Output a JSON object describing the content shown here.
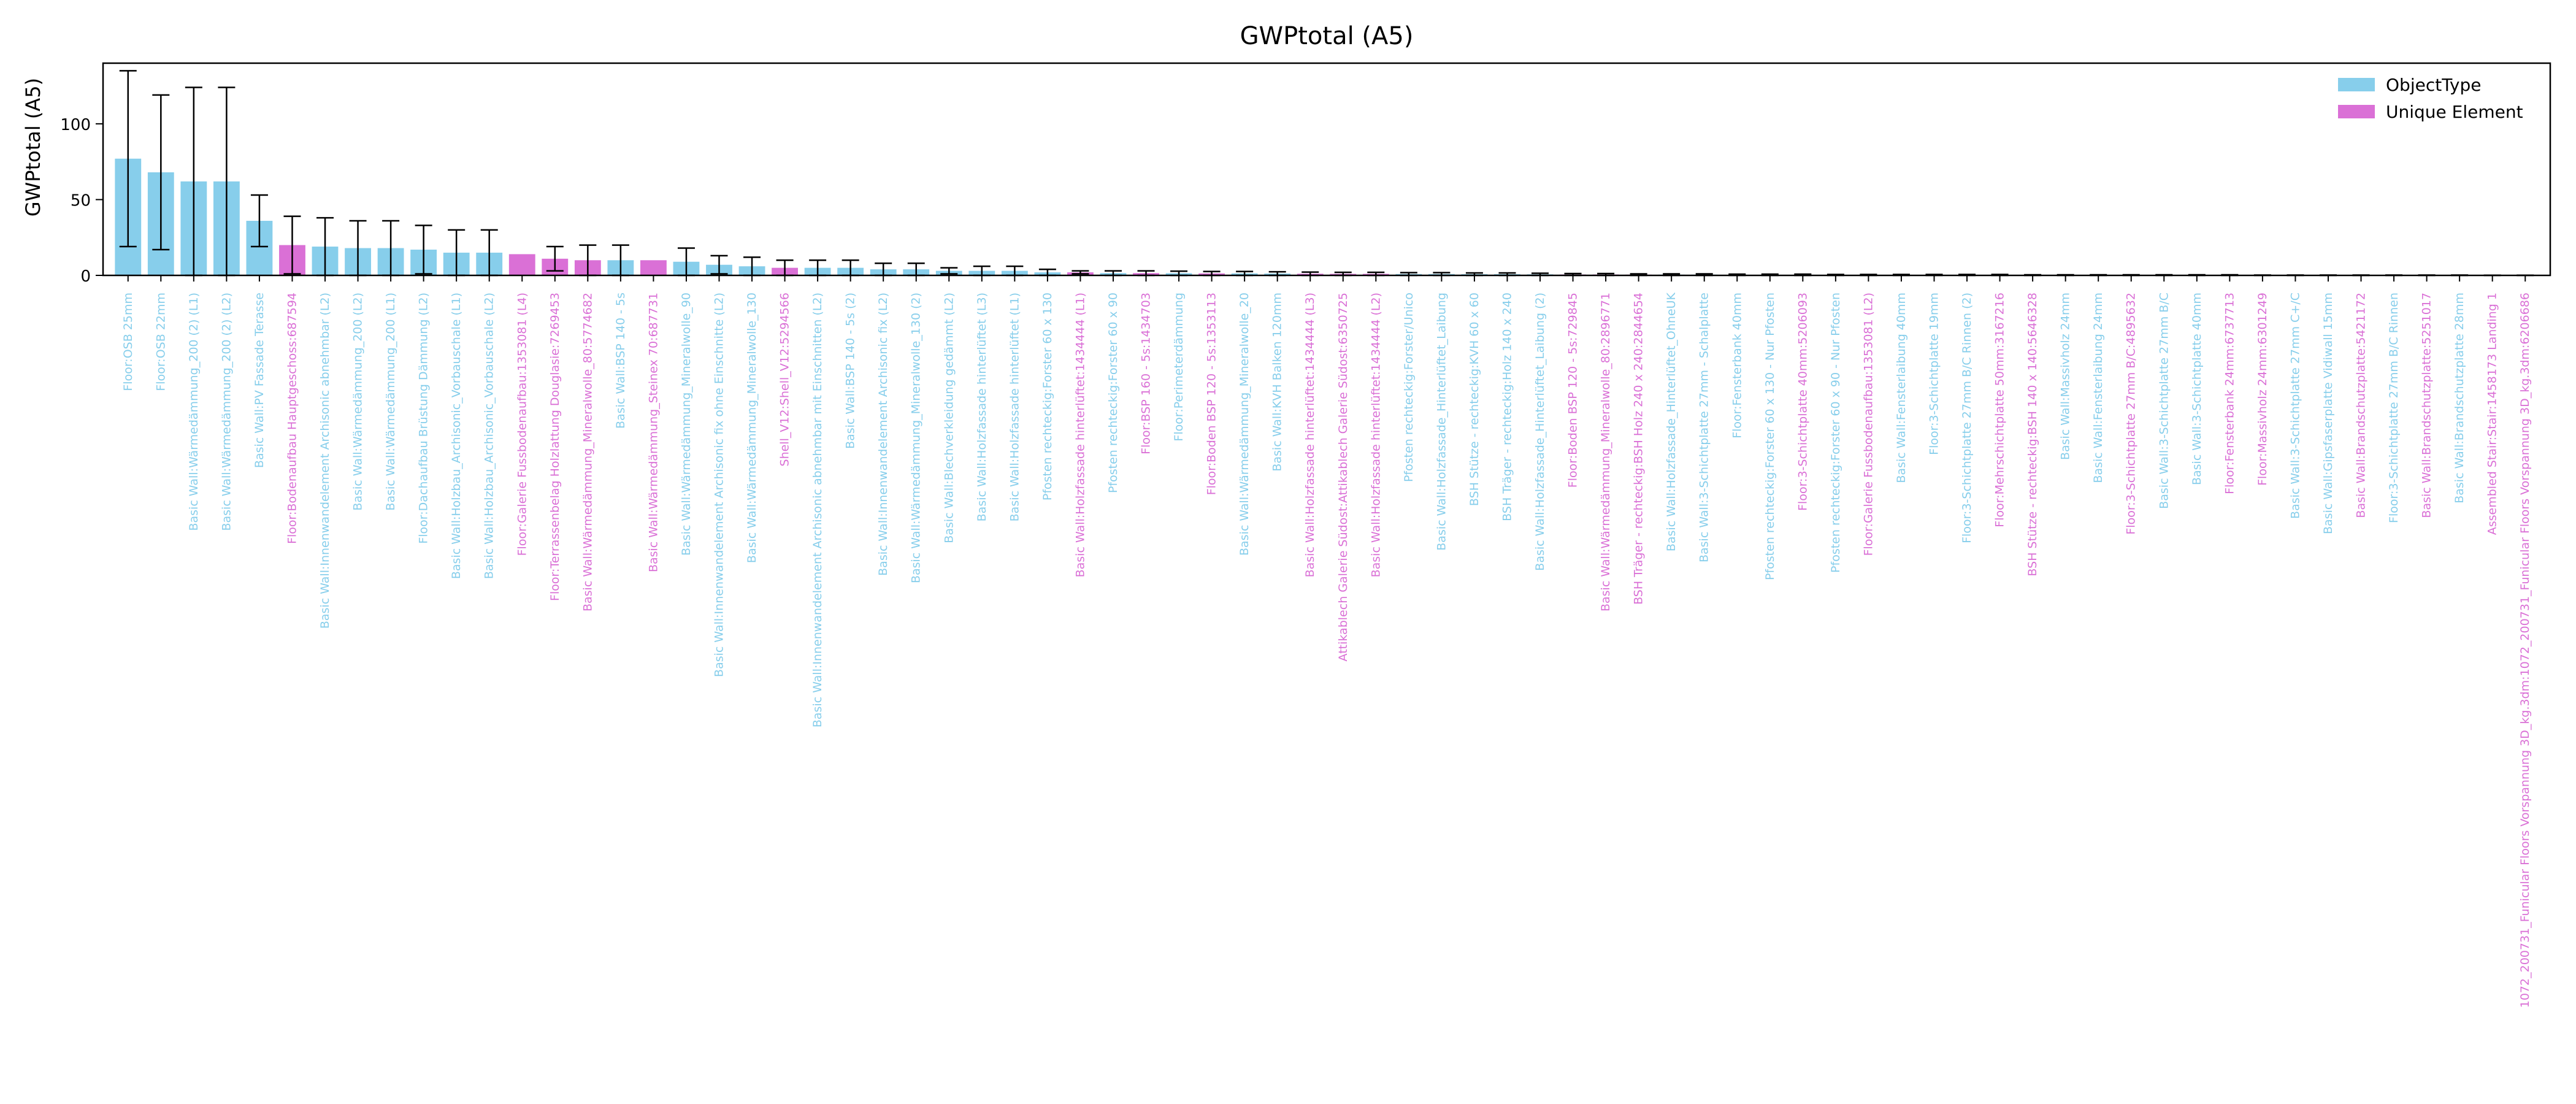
{
  "chart_data": {
    "type": "bar",
    "title": "GWPtotal (A5)",
    "xlabel": "",
    "ylabel": "GWPtotal (A5)",
    "ylim": [
      0,
      140
    ],
    "yticks": [
      0,
      50,
      100
    ],
    "grid": false,
    "legend_position": "top-right",
    "series": [
      {
        "name": "ObjectType",
        "color": "#87ceeb"
      },
      {
        "name": "Unique Element",
        "color": "#da70d6"
      }
    ],
    "bars": [
      {
        "label": "Floor:OSB 25mm",
        "value": 77,
        "err": 58,
        "series": 0
      },
      {
        "label": "Floor:OSB 22mm",
        "value": 68,
        "err": 51,
        "series": 0
      },
      {
        "label": "Basic Wall:Wärmedämmung_200 (2) (L1)",
        "value": 62,
        "err": 62,
        "series": 0
      },
      {
        "label": "Basic Wall:Wärmedämmung_200 (2) (L2)",
        "value": 62,
        "err": 62,
        "series": 0
      },
      {
        "label": "Basic Wall:PV Fassade Terasse",
        "value": 36,
        "err": 17,
        "series": 0
      },
      {
        "label": "Floor:Bodenaufbau Hauptgeschoss:687594",
        "value": 20,
        "err": 19,
        "series": 1
      },
      {
        "label": "Basic Wall:Innenwandelement Archisonic abnehmbar (L2)",
        "value": 19,
        "err": 19,
        "series": 0
      },
      {
        "label": "Basic Wall:Wärmedämmung_200 (L2)",
        "value": 18,
        "err": 18,
        "series": 0
      },
      {
        "label": "Basic Wall:Wärmedämmung_200 (L1)",
        "value": 18,
        "err": 18,
        "series": 0
      },
      {
        "label": "Floor:Dachaufbau Brüstung Dämmung (L2)",
        "value": 17,
        "err": 16,
        "series": 0
      },
      {
        "label": "Basic Wall:Holzbau_Archisonic_Vorbauschale (L1)",
        "value": 15,
        "err": 15,
        "series": 0
      },
      {
        "label": "Basic Wall:Holzbau_Archisonic_Vorbauschale (L2)",
        "value": 15,
        "err": 15,
        "series": 0
      },
      {
        "label": "Floor:Galerie Fussbodenaufbau:1353081 (L4)",
        "value": 14,
        "err": 0,
        "series": 1
      },
      {
        "label": "Floor:Terrassenbelag Holzlattung Douglasie:7269453",
        "value": 11,
        "err": 8,
        "series": 1
      },
      {
        "label": "Basic Wall:Wärmedämmung_Mineralwolle_80:5774682",
        "value": 10,
        "err": 10,
        "series": 1
      },
      {
        "label": "Basic Wall:BSP 140 - 5s",
        "value": 10,
        "err": 10,
        "series": 0
      },
      {
        "label": "Basic Wall:Wärmedämmung_Steinex 70:687731",
        "value": 10,
        "err": 0,
        "series": 1
      },
      {
        "label": "Basic Wall:Wärmedämmung_Mineralwolle_90",
        "value": 9,
        "err": 9,
        "series": 0
      },
      {
        "label": "Basic Wall:Innenwandelement Archisonic fix ohne Einschnitte (L2)",
        "value": 7,
        "err": 6,
        "series": 0
      },
      {
        "label": "Basic Wall:Wärmedämmung_Mineralwolle_130",
        "value": 6,
        "err": 6,
        "series": 0
      },
      {
        "label": "Shell_V12:Shell_V12:5294566",
        "value": 5,
        "err": 5,
        "series": 1
      },
      {
        "label": "Basic Wall:Innenwandelement Archisonic abnehmbar mit Einschnitten (L2)",
        "value": 5,
        "err": 5,
        "series": 0
      },
      {
        "label": "Basic Wall:BSP 140 - 5s (2)",
        "value": 5,
        "err": 5,
        "series": 0
      },
      {
        "label": "Basic Wall:Innenwandelement Archisonic fix (L2)",
        "value": 4,
        "err": 4,
        "series": 0
      },
      {
        "label": "Basic Wall:Wärmedämmung_Mineralwolle_130 (2)",
        "value": 4,
        "err": 4,
        "series": 0
      },
      {
        "label": "Basic Wall:Blechverkleidung gedämmt (L2)",
        "value": 3,
        "err": 2,
        "series": 0
      },
      {
        "label": "Basic Wall:Holzfassade hinterlüftet (L3)",
        "value": 3,
        "err": 3,
        "series": 0
      },
      {
        "label": "Basic Wall:Holzfassade hinterlüftet (L1)",
        "value": 3,
        "err": 3,
        "series": 0
      },
      {
        "label": "Pfosten rechteckig:Forster 60 x 130",
        "value": 2,
        "err": 2,
        "series": 0
      },
      {
        "label": "Basic Wall:Holzfassade hinterlüftet:1434444 (L1)",
        "value": 2,
        "err": 1,
        "series": 1
      },
      {
        "label": "Pfosten rechteckig:Forster 60 x 90",
        "value": 1.5,
        "err": 1.5,
        "series": 0
      },
      {
        "label": "Floor:BSP 160 - 5s:1434703",
        "value": 1.5,
        "err": 1.5,
        "series": 1
      },
      {
        "label": "Floor:Perimeterdämmung",
        "value": 1.4,
        "err": 1.4,
        "series": 0
      },
      {
        "label": "Floor:Boden BSP 120 - 5s:1353113",
        "value": 1.3,
        "err": 1.3,
        "series": 1
      },
      {
        "label": "Basic Wall:Wärmedämmung_Mineralwolle_20",
        "value": 1.3,
        "err": 1.3,
        "series": 0
      },
      {
        "label": "Basic Wall:KVH Balken 120mm",
        "value": 1.2,
        "err": 1.2,
        "series": 0
      },
      {
        "label": "Basic Wall:Holzfassade hinterlüftet:1434444 (L3)",
        "value": 1.1,
        "err": 1.1,
        "series": 1
      },
      {
        "label": "Attikablech Galerie Südost:Attikablech Galerie Südost:6350725",
        "value": 1,
        "err": 1,
        "series": 1
      },
      {
        "label": "Basic Wall:Holzfassade hinterlüftet:1434444 (L2)",
        "value": 1,
        "err": 1,
        "series": 1
      },
      {
        "label": "Pfosten rechteckig:Forster/Unico",
        "value": 0.9,
        "err": 0.9,
        "series": 0
      },
      {
        "label": "Basic Wall:Holzfassade_Hinterlüftet_Laibung",
        "value": 0.9,
        "err": 0.9,
        "series": 0
      },
      {
        "label": "BSH Stütze - rechteckig:KVH 60 x 60",
        "value": 0.8,
        "err": 0.8,
        "series": 0
      },
      {
        "label": "BSH Träger - rechteckig:Holz 140 x 240",
        "value": 0.8,
        "err": 0.8,
        "series": 0
      },
      {
        "label": "Basic Wall:Holzfassade_Hinterlüftet_Laibung (2)",
        "value": 0.7,
        "err": 0.7,
        "series": 0
      },
      {
        "label": "Floor:Boden BSP 120 - 5s:729845",
        "value": 0.6,
        "err": 0.6,
        "series": 1
      },
      {
        "label": "Basic Wall:Wärmedämmung_Mineralwolle_80:2896771",
        "value": 0.6,
        "err": 0.6,
        "series": 1
      },
      {
        "label": "BSH Träger - rechteckig:BSH Holz 240 x 240:2844654",
        "value": 0.5,
        "err": 0.5,
        "series": 1
      },
      {
        "label": "Basic Wall:Holzfassade_Hinterlüftet_OhneUK",
        "value": 0.5,
        "err": 0.5,
        "series": 0
      },
      {
        "label": "Basic Wall:3-Schichtplatte 27mm - Schalplatte",
        "value": 0.5,
        "err": 0.5,
        "series": 0
      },
      {
        "label": "Floor:Fensterbank 40mm",
        "value": 0.4,
        "err": 0.4,
        "series": 0
      },
      {
        "label": "Pfosten rechteckig:Forster 60 x 130 - Nur Pfosten",
        "value": 0.4,
        "err": 0.4,
        "series": 0
      },
      {
        "label": "Floor:3-Schichtplatte 40mm:5206093",
        "value": 0.4,
        "err": 0.4,
        "series": 1
      },
      {
        "label": "Pfosten rechteckig:Forster 60 x 90 - Nur Pfosten",
        "value": 0.3,
        "err": 0.3,
        "series": 0
      },
      {
        "label": "Floor:Galerie Fussbodenaufbau:1353081 (L2)",
        "value": 0.3,
        "err": 0.3,
        "series": 1
      },
      {
        "label": "Basic Wall:Fensterlaibung 40mm",
        "value": 0.3,
        "err": 0.3,
        "series": 0
      },
      {
        "label": "Floor:3-Schichtplatte 19mm",
        "value": 0.3,
        "err": 0.3,
        "series": 0
      },
      {
        "label": "Floor:3-Schichtplatte 27mm B/C Rinnen (2)",
        "value": 0.3,
        "err": 0.3,
        "series": 0
      },
      {
        "label": "Floor:Mehrschichtplatte 50mm:3167216",
        "value": 0.3,
        "err": 0.3,
        "series": 1
      },
      {
        "label": "BSH Stütze - rechteckig:BSH 140 x 140:5646328",
        "value": 0.2,
        "err": 0.2,
        "series": 1
      },
      {
        "label": "Basic Wall:Massivholz 24mm",
        "value": 0.2,
        "err": 0.2,
        "series": 0
      },
      {
        "label": "Basic Wall:Fensterlaibung 24mm",
        "value": 0.2,
        "err": 0.2,
        "series": 0
      },
      {
        "label": "Floor:3-Schichtplatte 27mm B/C:4895632",
        "value": 0.2,
        "err": 0.2,
        "series": 1
      },
      {
        "label": "Basic Wall:3-Schichtplatte 27mm B/C",
        "value": 0.2,
        "err": 0.2,
        "series": 0
      },
      {
        "label": "Basic Wall:3-Schichtplatte 40mm",
        "value": 0.2,
        "err": 0.2,
        "series": 0
      },
      {
        "label": "Floor:Fensterbank 24mm:6737713",
        "value": 0.2,
        "err": 0.2,
        "series": 1
      },
      {
        "label": "Floor:Massivholz 24mm:6301249",
        "value": 0.1,
        "err": 0.1,
        "series": 1
      },
      {
        "label": "Basic Wall:3-Schichtplatte 27mm C+/C",
        "value": 0.1,
        "err": 0.1,
        "series": 0
      },
      {
        "label": "Basic Wall:Gipsfaserplatte Vidiwall 15mm",
        "value": 0.1,
        "err": 0.1,
        "series": 0
      },
      {
        "label": "Basic Wall:Brandschutzplatte:5421172",
        "value": 0.1,
        "err": 0.1,
        "series": 1
      },
      {
        "label": "Floor:3-Schichtplatte 27mm B/C Rinnen",
        "value": 0.1,
        "err": 0.1,
        "series": 0
      },
      {
        "label": "Basic Wall:Brandschutzplatte:5251017",
        "value": 0.1,
        "err": 0.1,
        "series": 1
      },
      {
        "label": "Basic Wall:Brandschutzplatte 28mm",
        "value": 0.1,
        "err": 0.1,
        "series": 0
      },
      {
        "label": "Assembled Stair:Stair:1458173 Landing 1",
        "value": 0.05,
        "err": 0.05,
        "series": 1
      },
      {
        "label": "1072_200731_Funicular Floors Vorspannung 3D_kg.3dm:1072_200731_Funicular Floors Vorspannung 3D_kg.3dm:6206686",
        "value": 0.05,
        "err": 0.05,
        "series": 1
      }
    ]
  }
}
